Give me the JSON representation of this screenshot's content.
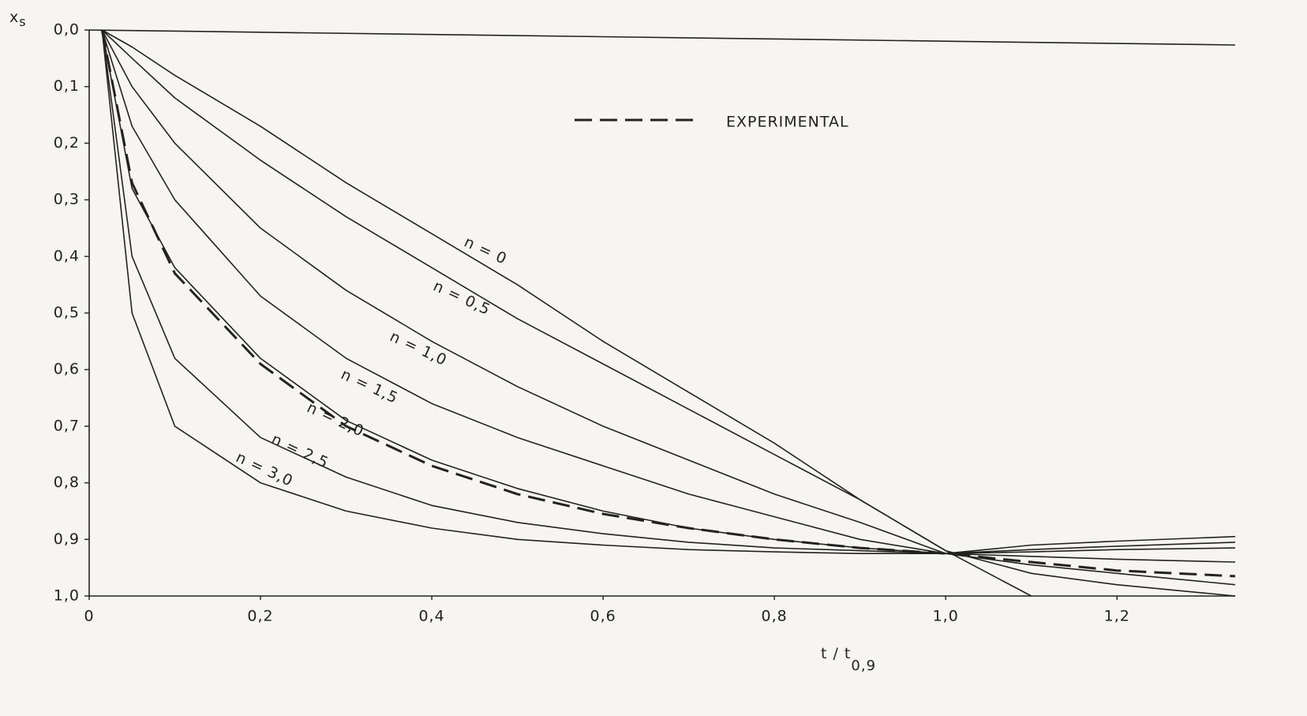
{
  "chart_data": {
    "type": "line",
    "y_label": "x",
    "y_label_subscript": "s",
    "x_label": "t / t",
    "x_label_subscript": "0,9",
    "x": [
      0.015,
      0.05,
      0.1,
      0.2,
      0.3,
      0.4,
      0.5,
      0.6,
      0.7,
      0.8,
      0.9,
      1.0,
      1.1,
      1.2,
      1.338
    ],
    "xlim": [
      0,
      1.338
    ],
    "ylim": [
      0,
      1
    ],
    "y_inverted": true,
    "xticks": [
      0,
      {
        "value": 0.2,
        "label": "0,2"
      },
      {
        "value": 0.4,
        "label": "0,4"
      },
      {
        "value": 0.6,
        "label": "0,6"
      },
      {
        "value": 0.8,
        "label": "0,8"
      },
      {
        "value": 1.0,
        "label": "1,0"
      },
      {
        "value": 1.2,
        "label": "1,2"
      }
    ],
    "yticks": [
      {
        "value": 0,
        "label": "0,0"
      },
      {
        "value": 0.1,
        "label": "0,1"
      },
      {
        "value": 0.2,
        "label": "0,2"
      },
      {
        "value": 0.3,
        "label": "0,3"
      },
      {
        "value": 0.4,
        "label": "0,4"
      },
      {
        "value": 0.5,
        "label": "0,5"
      },
      {
        "value": 0.6,
        "label": "0,6"
      },
      {
        "value": 0.7,
        "label": "0,7"
      },
      {
        "value": 0.8,
        "label": "0,8"
      },
      {
        "value": 0.9,
        "label": "0,9"
      },
      {
        "value": 1,
        "label": "1,0"
      }
    ],
    "legend": "top",
    "series": [
      {
        "name": "n = 0",
        "color": "#222222",
        "dashed": false,
        "values": [
          0,
          0.03,
          0.08,
          0.17,
          0.27,
          0.36,
          0.45,
          0.55,
          0.64,
          0.73,
          0.83,
          0.92,
          1.0,
          null,
          null
        ]
      },
      {
        "name": "n = 0,5",
        "color": "#222222",
        "dashed": false,
        "values": [
          0,
          0.05,
          0.12,
          0.23,
          0.33,
          0.42,
          0.51,
          0.59,
          0.67,
          0.75,
          0.83,
          0.92,
          0.96,
          0.98,
          1.0
        ]
      },
      {
        "name": "n = 1,0",
        "color": "#222222",
        "dashed": false,
        "values": [
          0,
          0.1,
          0.2,
          0.35,
          0.46,
          0.55,
          0.63,
          0.7,
          0.76,
          0.82,
          0.87,
          0.925,
          0.945,
          0.96,
          0.98
        ]
      },
      {
        "name": "n = 1,5",
        "color": "#222222",
        "dashed": false,
        "values": [
          0,
          0.17,
          0.3,
          0.47,
          0.58,
          0.66,
          0.72,
          0.77,
          0.82,
          0.86,
          0.9,
          0.925,
          0.93,
          0.935,
          0.94
        ]
      },
      {
        "name": "n = 2,0",
        "color": "#222222",
        "dashed": false,
        "values": [
          0,
          0.28,
          0.42,
          0.58,
          0.69,
          0.76,
          0.81,
          0.85,
          0.88,
          0.9,
          0.915,
          0.925,
          0.922,
          0.918,
          0.915
        ]
      },
      {
        "name": "n = 2,5",
        "color": "#222222",
        "dashed": false,
        "values": [
          0,
          0.4,
          0.58,
          0.72,
          0.79,
          0.84,
          0.87,
          0.89,
          0.905,
          0.915,
          0.92,
          0.925,
          0.918,
          0.912,
          0.905
        ]
      },
      {
        "name": "n = 3,0",
        "color": "#222222",
        "dashed": false,
        "values": [
          0,
          0.5,
          0.7,
          0.8,
          0.85,
          0.88,
          0.9,
          0.91,
          0.918,
          0.922,
          0.925,
          0.925,
          0.91,
          0.903,
          0.895
        ]
      },
      {
        "name": "EXPERIMENTAL",
        "color": "#222222",
        "dashed": true,
        "values": [
          0,
          0.27,
          0.43,
          0.59,
          0.7,
          0.77,
          0.82,
          0.855,
          0.88,
          0.9,
          0.915,
          0.925,
          0.94,
          0.955,
          0.965
        ]
      }
    ]
  }
}
